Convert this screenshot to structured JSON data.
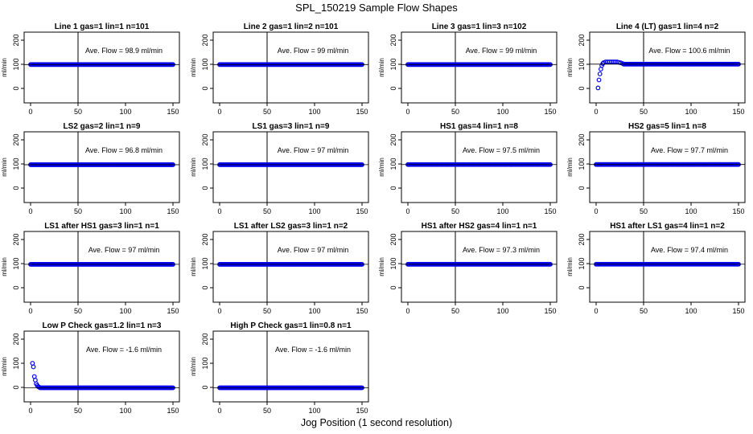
{
  "page_title": "SPL_150219  Sample Flow Shapes",
  "x_axis_title": "Jog Position (1 second resolution)",
  "colors": {
    "points": "#0000ee",
    "axes": "#000000"
  },
  "chart_data": [
    {
      "type": "scatter",
      "title": "Line 1 gas=1 lin=1 n=101",
      "ylabel": "ml/min",
      "xlim": [
        0,
        150
      ],
      "ylim": [
        -40,
        220
      ],
      "xticks": [
        0,
        50,
        100,
        150
      ],
      "yticks": [
        0,
        100,
        200
      ],
      "vline": 50,
      "annotation": "Ave. Flow = 98.9  ml/min",
      "shape": "flat",
      "level": 98.9
    },
    {
      "type": "scatter",
      "title": "Line 2 gas=1 lin=2 n=101",
      "ylabel": "ml/min",
      "xlim": [
        0,
        150
      ],
      "ylim": [
        -40,
        220
      ],
      "xticks": [
        0,
        50,
        100,
        150
      ],
      "yticks": [
        0,
        100,
        200
      ],
      "vline": 50,
      "annotation": "Ave. Flow = 99  ml/min",
      "shape": "flat",
      "level": 99
    },
    {
      "type": "scatter",
      "title": "Line 3 gas=1 lin=3 n=102",
      "ylabel": "ml/min",
      "xlim": [
        0,
        150
      ],
      "ylim": [
        -40,
        220
      ],
      "xticks": [
        0,
        50,
        100,
        150
      ],
      "yticks": [
        0,
        100,
        200
      ],
      "vline": 50,
      "annotation": "Ave. Flow = 99  ml/min",
      "shape": "flat",
      "level": 99
    },
    {
      "type": "scatter",
      "title": "Line 4 (LT) gas=1 lin=4 n=2",
      "ylabel": "ml/min",
      "xlim": [
        0,
        150
      ],
      "ylim": [
        -40,
        220
      ],
      "xticks": [
        0,
        50,
        100,
        150
      ],
      "yticks": [
        0,
        100,
        200
      ],
      "vline": 50,
      "annotation": "Ave. Flow = 100.6  ml/min",
      "shape": "rise",
      "level": 100.6,
      "initial": [
        [
          2,
          2
        ],
        [
          3,
          35
        ],
        [
          4,
          60
        ],
        [
          5,
          80
        ],
        [
          6,
          95
        ],
        [
          7,
          103
        ],
        [
          8,
          107
        ],
        [
          10,
          110
        ],
        [
          12,
          110
        ],
        [
          14,
          110
        ],
        [
          16,
          110
        ],
        [
          18,
          110
        ],
        [
          20,
          110
        ],
        [
          22,
          110
        ],
        [
          24,
          108
        ],
        [
          26,
          106
        ],
        [
          28,
          103
        ]
      ]
    },
    {
      "type": "scatter",
      "title": "LS2 gas=2 lin=1 n=9",
      "ylabel": "ml/min",
      "xlim": [
        0,
        150
      ],
      "ylim": [
        -40,
        220
      ],
      "xticks": [
        0,
        50,
        100,
        150
      ],
      "yticks": [
        0,
        100,
        200
      ],
      "vline": 50,
      "annotation": "Ave. Flow = 96.8  ml/min",
      "shape": "flat",
      "level": 96.8
    },
    {
      "type": "scatter",
      "title": "LS1 gas=3 lin=1 n=9",
      "ylabel": "ml/min",
      "xlim": [
        0,
        150
      ],
      "ylim": [
        -40,
        220
      ],
      "xticks": [
        0,
        50,
        100,
        150
      ],
      "yticks": [
        0,
        100,
        200
      ],
      "vline": 50,
      "annotation": "Ave. Flow = 97  ml/min",
      "shape": "flat",
      "level": 97
    },
    {
      "type": "scatter",
      "title": "HS1 gas=4 lin=1 n=8",
      "ylabel": "ml/min",
      "xlim": [
        0,
        150
      ],
      "ylim": [
        -40,
        220
      ],
      "xticks": [
        0,
        50,
        100,
        150
      ],
      "yticks": [
        0,
        100,
        200
      ],
      "vline": 50,
      "annotation": "Ave. Flow = 97.5  ml/min",
      "shape": "flat",
      "level": 97.5
    },
    {
      "type": "scatter",
      "title": "HS2 gas=5 lin=1 n=8",
      "ylabel": "ml/min",
      "xlim": [
        0,
        150
      ],
      "ylim": [
        -40,
        220
      ],
      "xticks": [
        0,
        50,
        100,
        150
      ],
      "yticks": [
        0,
        100,
        200
      ],
      "vline": 50,
      "annotation": "Ave. Flow = 97.7  ml/min",
      "shape": "flat",
      "level": 97.7
    },
    {
      "type": "scatter",
      "title": "LS1 after HS1 gas=3 lin=1 n=1",
      "ylabel": "ml/min",
      "xlim": [
        0,
        150
      ],
      "ylim": [
        -40,
        220
      ],
      "xticks": [
        0,
        50,
        100,
        150
      ],
      "yticks": [
        0,
        100,
        200
      ],
      "vline": 50,
      "annotation": "Ave. Flow = 97  ml/min",
      "shape": "flat",
      "level": 97
    },
    {
      "type": "scatter",
      "title": "LS1 after LS2 gas=3 lin=1 n=2",
      "ylabel": "ml/min",
      "xlim": [
        0,
        150
      ],
      "ylim": [
        -40,
        220
      ],
      "xticks": [
        0,
        50,
        100,
        150
      ],
      "yticks": [
        0,
        100,
        200
      ],
      "vline": 50,
      "annotation": "Ave. Flow = 97  ml/min",
      "shape": "flat",
      "level": 97
    },
    {
      "type": "scatter",
      "title": "HS1 after HS2 gas=4 lin=1 n=1",
      "ylabel": "ml/min",
      "xlim": [
        0,
        150
      ],
      "ylim": [
        -40,
        220
      ],
      "xticks": [
        0,
        50,
        100,
        150
      ],
      "yticks": [
        0,
        100,
        200
      ],
      "vline": 50,
      "annotation": "Ave. Flow = 97.3  ml/min",
      "shape": "flat",
      "level": 97.3
    },
    {
      "type": "scatter",
      "title": "HS1 after LS1 gas=4 lin=1 n=2",
      "ylabel": "ml/min",
      "xlim": [
        0,
        150
      ],
      "ylim": [
        -40,
        220
      ],
      "xticks": [
        0,
        50,
        100,
        150
      ],
      "yticks": [
        0,
        100,
        200
      ],
      "vline": 50,
      "annotation": "Ave. Flow = 97.4  ml/min",
      "shape": "flat",
      "level": 97.4
    },
    {
      "type": "scatter",
      "title": "Low P Check gas=1.2 lin=1 n=3",
      "ylabel": "ml/min",
      "xlim": [
        0,
        150
      ],
      "ylim": [
        -40,
        220
      ],
      "xticks": [
        0,
        50,
        100,
        150
      ],
      "yticks": [
        0,
        100,
        200
      ],
      "vline": 50,
      "annotation": "Ave. Flow = -1.6  ml/min",
      "shape": "decay",
      "level": -1.6,
      "initial": [
        [
          2,
          100
        ],
        [
          3,
          85
        ],
        [
          4,
          45
        ],
        [
          5,
          30
        ],
        [
          6,
          15
        ],
        [
          7,
          8
        ],
        [
          8,
          3
        ],
        [
          9,
          1
        ]
      ]
    },
    {
      "type": "scatter",
      "title": "High P Check gas=1 lin=0.8 n=1",
      "ylabel": "ml/min",
      "xlim": [
        0,
        150
      ],
      "ylim": [
        -40,
        220
      ],
      "xticks": [
        0,
        50,
        100,
        150
      ],
      "yticks": [
        0,
        100,
        200
      ],
      "vline": 50,
      "annotation": "Ave. Flow = -1.6  ml/min",
      "shape": "flat",
      "level": -1.6
    }
  ]
}
